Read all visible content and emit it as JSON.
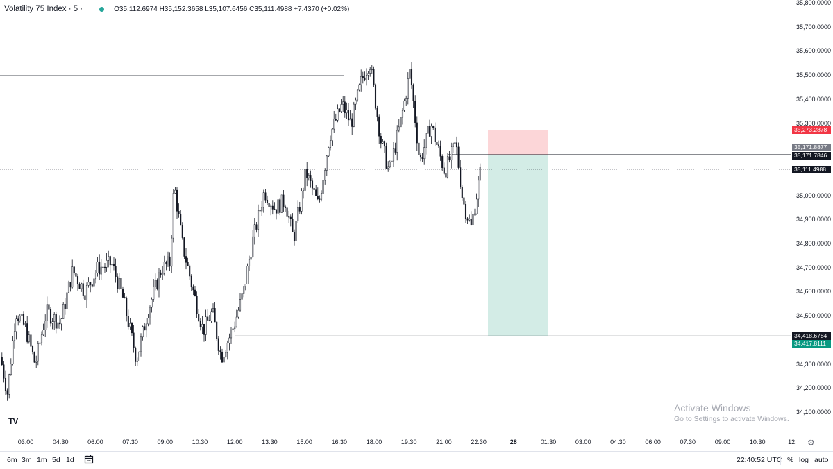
{
  "legend": {
    "symbol": "Volatility 75 Index · 5 ·",
    "ohlc": "O35,112.6974 H35,152.3658 L35,107.6456 C35,111.4988 +7.4370 (+0.02%)"
  },
  "price_scale": {
    "ticks": [
      "35,800.0000",
      "35,700.0000",
      "35,600.0000",
      "35,500.0000",
      "35,400.0000",
      "35,300.0000",
      "35,000.0000",
      "34,900.0000",
      "34,800.0000",
      "34,700.0000",
      "34,600.0000",
      "34,500.0000",
      "34,300.0000",
      "34,200.0000",
      "34,100.0000"
    ],
    "labels": [
      {
        "text": "35,273.2878",
        "color": "#f23645"
      },
      {
        "text": "35,171.8877",
        "color": "#787b86"
      },
      {
        "text": "35,171.7846",
        "color": "#131722"
      },
      {
        "text": "35,111.4988",
        "color": "#131722"
      },
      {
        "text": "34,418.6784",
        "color": "#131722"
      },
      {
        "text": "34,417.8111",
        "color": "#089981"
      }
    ]
  },
  "time_axis": {
    "ticks": [
      "03:00",
      "04:30",
      "06:00",
      "07:30",
      "09:00",
      "10:30",
      "12:00",
      "13:30",
      "15:00",
      "16:30",
      "18:00",
      "19:30",
      "21:00",
      "22:30",
      "28",
      "01:30",
      "03:00",
      "04:30",
      "06:00",
      "07:30",
      "09:00",
      "10:30",
      "12:"
    ]
  },
  "bottom_bar": {
    "timeframes": [
      "6m",
      "3m",
      "1m",
      "5d",
      "1d"
    ],
    "clock": "22:40:52 UTC",
    "percent": "%",
    "log": "log",
    "auto": "auto"
  },
  "watermark": {
    "title": "Activate Windows",
    "subtitle": "Go to Settings to activate Windows."
  },
  "logo": "TV",
  "colors": {
    "up": "#ffffff",
    "down": "#131722",
    "wick": "#131722",
    "stop_zone": "#fcd6d8",
    "target_zone": "#d3ece6",
    "accent_green": "#26a69a"
  },
  "icons": [
    "tradingview-logo-icon",
    "calendar-range-icon",
    "gear-icon"
  ],
  "chart_data": {
    "type": "candlestick",
    "symbol": "Volatility 75 Index",
    "interval": "5",
    "ylim": [
      34050,
      35800
    ],
    "last_close": 35111.4988,
    "horizontal_lines": [
      35500,
      34418.6784
    ],
    "position": {
      "type": "short",
      "entry": 35171.7846,
      "stop": 35273.2878,
      "target": 34417.8111
    },
    "trajectory": [
      [
        0,
        34330
      ],
      [
        10,
        34180
      ],
      [
        22,
        34520
      ],
      [
        36,
        34450
      ],
      [
        50,
        34300
      ],
      [
        66,
        34520
      ],
      [
        86,
        34470
      ],
      [
        104,
        34690
      ],
      [
        122,
        34600
      ],
      [
        140,
        34700
      ],
      [
        160,
        34720
      ],
      [
        176,
        34580
      ],
      [
        196,
        34320
      ],
      [
        212,
        34520
      ],
      [
        232,
        34700
      ],
      [
        244,
        34720
      ],
      [
        250,
        35050
      ],
      [
        262,
        34800
      ],
      [
        278,
        34600
      ],
      [
        292,
        34440
      ],
      [
        305,
        34520
      ],
      [
        318,
        34330
      ],
      [
        336,
        34460
      ],
      [
        350,
        34600
      ],
      [
        362,
        34800
      ],
      [
        380,
        35020
      ],
      [
        395,
        34950
      ],
      [
        410,
        34980
      ],
      [
        422,
        34820
      ],
      [
        440,
        35100
      ],
      [
        458,
        34960
      ],
      [
        474,
        35250
      ],
      [
        492,
        35380
      ],
      [
        505,
        35300
      ],
      [
        520,
        35480
      ],
      [
        532,
        35560
      ],
      [
        548,
        35230
      ],
      [
        560,
        35100
      ],
      [
        576,
        35300
      ],
      [
        590,
        35520
      ],
      [
        604,
        35140
      ],
      [
        620,
        35300
      ],
      [
        640,
        35100
      ],
      [
        656,
        35220
      ],
      [
        666,
        34980
      ],
      [
        678,
        34870
      ],
      [
        692,
        35111
      ]
    ]
  }
}
